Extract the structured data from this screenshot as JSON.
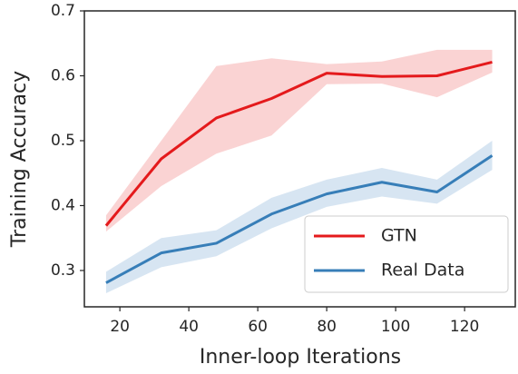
{
  "chart_data": {
    "type": "line",
    "x": [
      16,
      32,
      48,
      64,
      80,
      96,
      112,
      128
    ],
    "series": [
      {
        "name": "GTN",
        "color": "#e41a1c",
        "band_color": "#f7b6b6",
        "values": [
          0.369,
          0.472,
          0.535,
          0.565,
          0.604,
          0.599,
          0.6,
          0.621
        ],
        "upper": [
          0.385,
          0.5,
          0.615,
          0.627,
          0.618,
          0.622,
          0.64,
          0.64
        ],
        "lower": [
          0.36,
          0.43,
          0.48,
          0.508,
          0.587,
          0.588,
          0.567,
          0.605
        ]
      },
      {
        "name": "Real Data",
        "color": "#377eb8",
        "band_color": "#bcd3ea",
        "values": [
          0.281,
          0.327,
          0.342,
          0.387,
          0.418,
          0.436,
          0.421,
          0.477
        ],
        "upper": [
          0.298,
          0.35,
          0.362,
          0.412,
          0.44,
          0.458,
          0.44,
          0.5
        ],
        "lower": [
          0.265,
          0.305,
          0.322,
          0.365,
          0.398,
          0.414,
          0.403,
          0.455
        ]
      }
    ],
    "xlabel": "Inner-loop Iterations",
    "ylabel": "Training Accuracy",
    "xlim": [
      9.7,
      134.7
    ],
    "ylim": [
      0.244,
      0.7
    ],
    "xticks": [
      20,
      40,
      60,
      80,
      100,
      120
    ],
    "yticks": [
      0.3,
      0.4,
      0.5,
      0.6,
      0.7
    ],
    "legend": "lower right",
    "grid": false
  }
}
